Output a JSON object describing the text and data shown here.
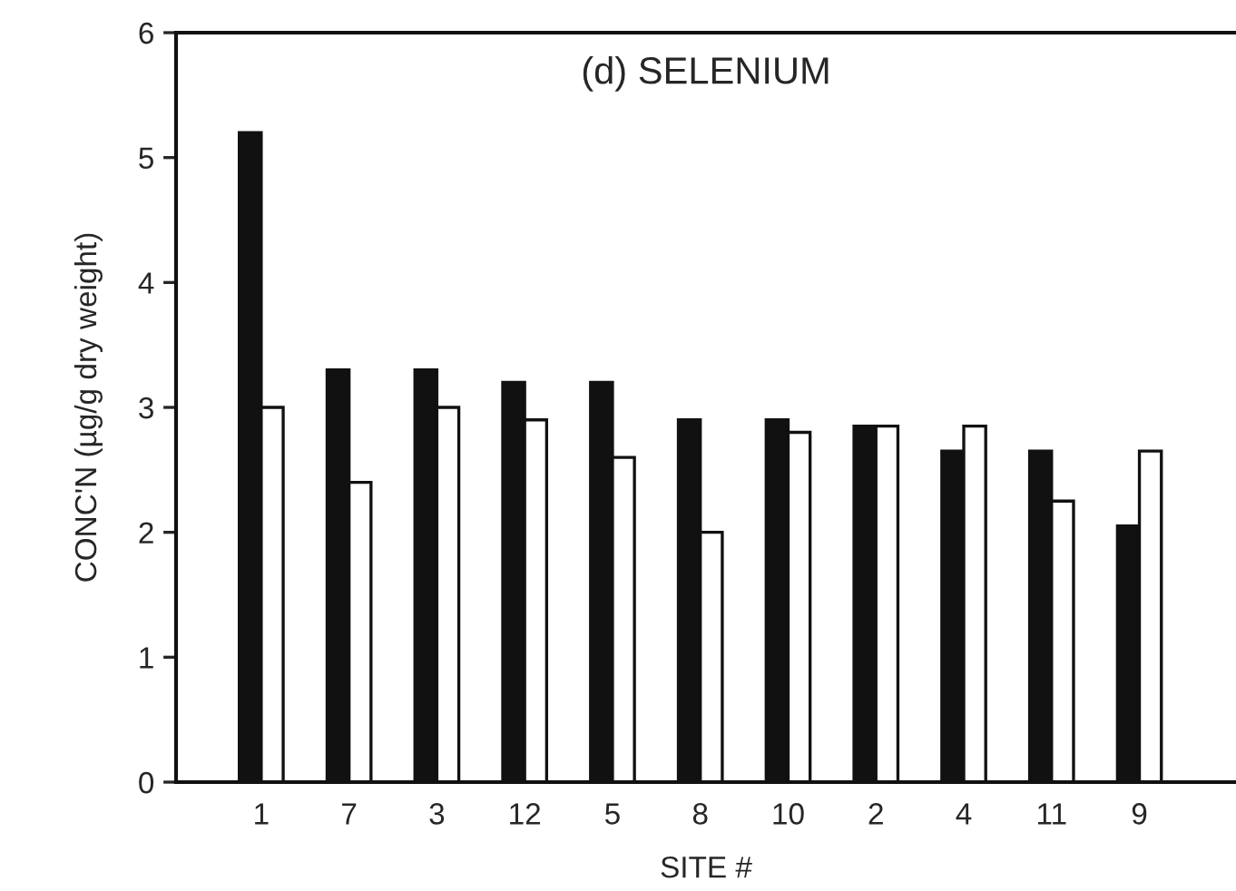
{
  "chart_data": {
    "type": "bar",
    "title": "(d) SELENIUM",
    "xlabel": "SITE #",
    "ylabel": "CONC'N (µg/g dry weight)",
    "categories": [
      "1",
      "7",
      "3",
      "12",
      "5",
      "8",
      "10",
      "2",
      "4",
      "11",
      "9"
    ],
    "series": [
      {
        "color": "#111111",
        "values": [
          5.2,
          3.3,
          3.3,
          3.2,
          3.2,
          2.9,
          2.9,
          2.85,
          2.65,
          2.65,
          2.05
        ]
      },
      {
        "color": "#ffffff",
        "values": [
          3.0,
          2.4,
          3.0,
          2.9,
          2.6,
          2.0,
          2.8,
          2.85,
          2.85,
          2.25,
          2.65
        ]
      }
    ],
    "ylim": [
      0,
      6
    ],
    "yticks": [
      0,
      1,
      2,
      3,
      4,
      5,
      6
    ],
    "grid": false
  }
}
